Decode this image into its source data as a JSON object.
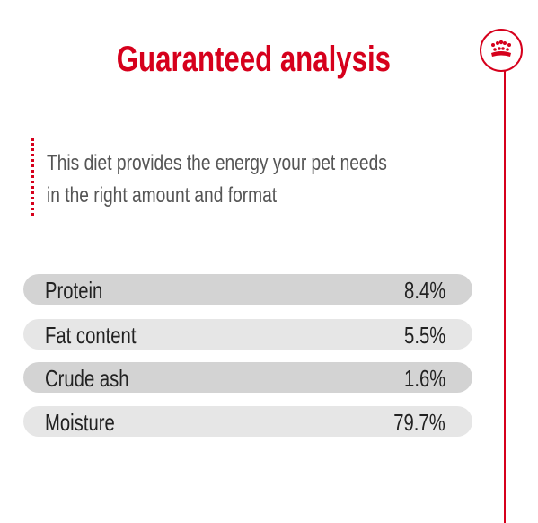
{
  "header": {
    "title": "Guaranteed analysis"
  },
  "description": {
    "lines": [
      "This diet provides the energy your pet needs",
      "in the right amount and format"
    ]
  },
  "table": {
    "rows": [
      [
        "Protein",
        "8.4%"
      ],
      [
        "Fat content",
        "5.5%"
      ],
      [
        "Crude ash",
        "1.6%"
      ],
      [
        "Moisture",
        "79.7%"
      ]
    ]
  }
}
